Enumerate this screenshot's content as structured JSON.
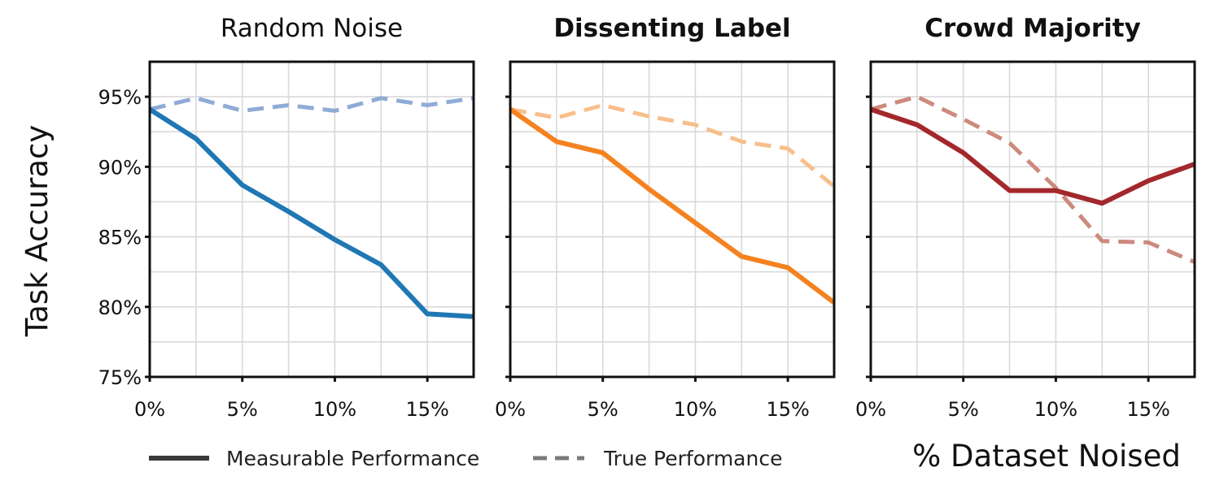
{
  "figure": {
    "ylabel": "Task Accuracy",
    "xlabel": "% Dataset Noised",
    "legend": {
      "measurable": "Measurable Performance",
      "true": "True Performance",
      "measurable_color": "#3a3a3a",
      "true_color": "#7a7a7a"
    }
  },
  "chart_data": [
    {
      "type": "line",
      "title": "Random Noise",
      "title_bold": false,
      "x": [
        0,
        2.5,
        5,
        7.5,
        10,
        12.5,
        15,
        17.5
      ],
      "xlim": [
        0,
        17.5
      ],
      "ylim": [
        75,
        97.5
      ],
      "xticks": [
        0,
        5,
        10,
        15
      ],
      "xtick_labels": [
        "0%",
        "5%",
        "10%",
        "15%"
      ],
      "yticks": [
        75,
        80,
        85,
        90,
        95
      ],
      "ytick_labels": [
        "75%",
        "80%",
        "85%",
        "90%",
        "95%"
      ],
      "grid": true,
      "series": [
        {
          "name": "Measurable Performance",
          "style": "solid",
          "color": "#1f77b4",
          "values": [
            94.1,
            92.0,
            88.7,
            86.8,
            84.8,
            83.0,
            79.5,
            79.3
          ]
        },
        {
          "name": "True Performance",
          "style": "dashed",
          "color": "#8fabd6",
          "values": [
            94.1,
            94.9,
            94.0,
            94.4,
            94.0,
            94.9,
            94.4,
            94.9
          ]
        }
      ]
    },
    {
      "type": "line",
      "title": "Dissenting Label",
      "title_bold": true,
      "x": [
        0,
        2.5,
        5,
        7.5,
        10,
        12.5,
        15,
        17.5
      ],
      "xlim": [
        0,
        17.5
      ],
      "ylim": [
        75,
        97.5
      ],
      "xticks": [
        0,
        5,
        10,
        15
      ],
      "xtick_labels": [
        "0%",
        "5%",
        "10%",
        "15%"
      ],
      "yticks": [
        75,
        80,
        85,
        90,
        95
      ],
      "ytick_labels": [
        "75%",
        "80%",
        "85%",
        "90%",
        "95%"
      ],
      "grid": true,
      "series": [
        {
          "name": "Measurable Performance",
          "style": "solid",
          "color": "#f58220",
          "values": [
            94.1,
            91.8,
            91.0,
            88.4,
            86.0,
            83.6,
            82.8,
            80.3
          ]
        },
        {
          "name": "True Performance",
          "style": "dashed",
          "color": "#f8bf8b",
          "values": [
            94.1,
            93.5,
            94.4,
            93.6,
            93.0,
            91.8,
            91.3,
            88.6
          ]
        }
      ]
    },
    {
      "type": "line",
      "title": "Crowd Majority",
      "title_bold": true,
      "x": [
        0,
        2.5,
        5,
        7.5,
        10,
        12.5,
        15,
        17.5
      ],
      "xlim": [
        0,
        17.5
      ],
      "ylim": [
        75,
        97.5
      ],
      "xticks": [
        0,
        5,
        10,
        15
      ],
      "xtick_labels": [
        "0%",
        "5%",
        "10%",
        "15%"
      ],
      "yticks": [
        75,
        80,
        85,
        90,
        95
      ],
      "ytick_labels": [
        "75%",
        "80%",
        "85%",
        "90%",
        "95%"
      ],
      "grid": true,
      "series": [
        {
          "name": "Measurable Performance",
          "style": "solid",
          "color": "#a3282b",
          "values": [
            94.1,
            93.0,
            91.0,
            88.3,
            88.3,
            87.4,
            89.0,
            90.2
          ]
        },
        {
          "name": "True Performance",
          "style": "dashed",
          "color": "#cc8a7d",
          "values": [
            94.1,
            95.0,
            93.4,
            91.7,
            88.5,
            84.7,
            84.6,
            83.2
          ]
        }
      ]
    }
  ]
}
